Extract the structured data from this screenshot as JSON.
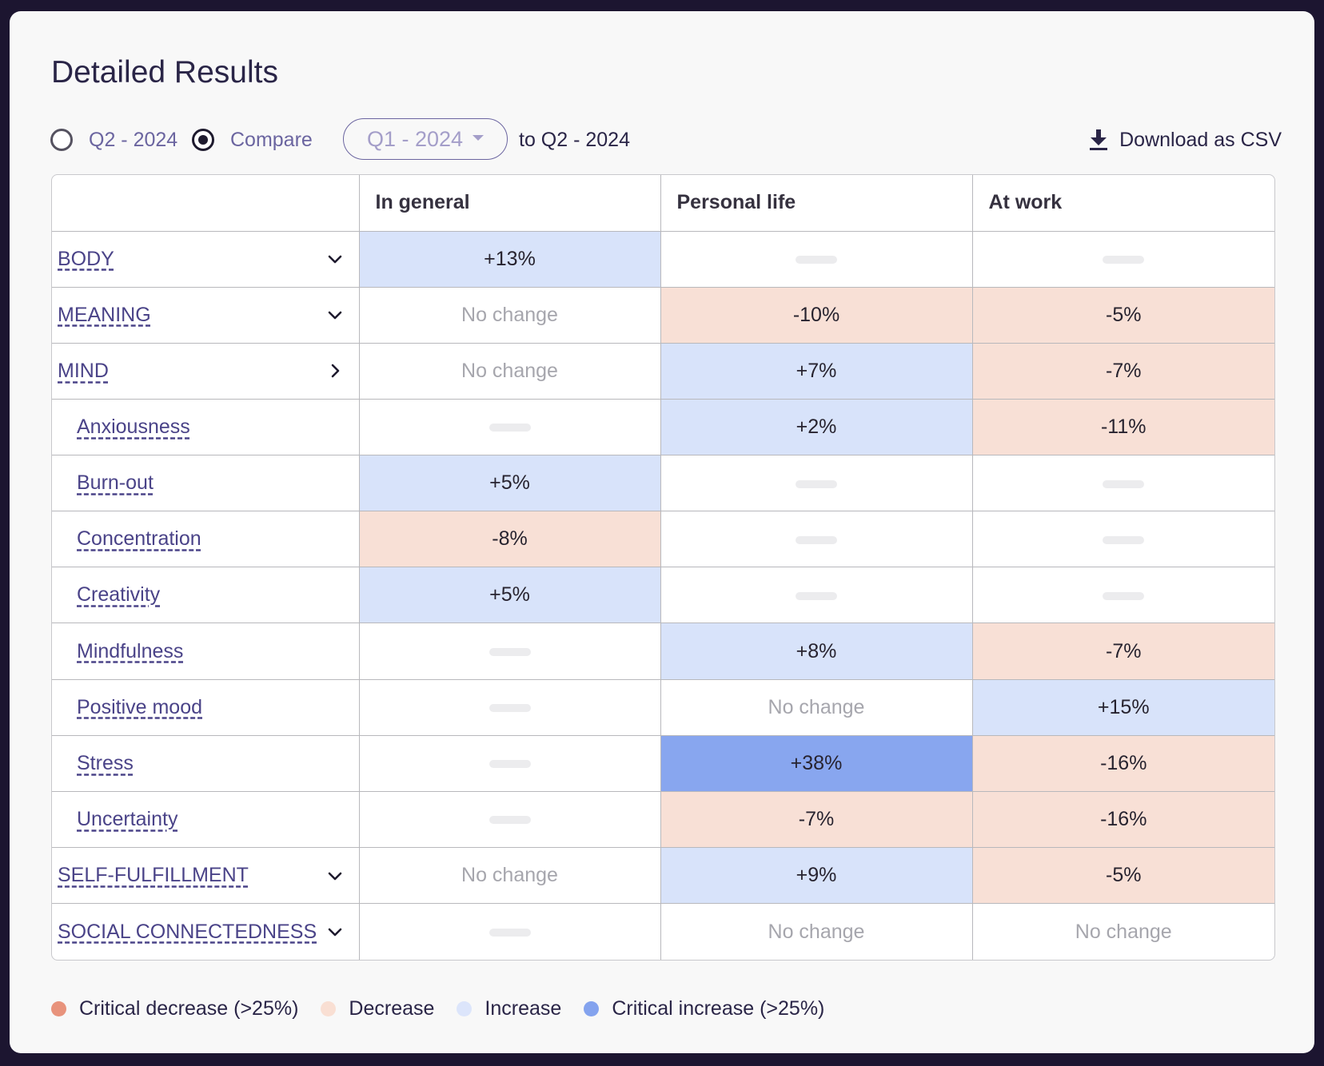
{
  "header": {
    "title": "Detailed Results"
  },
  "controls": {
    "radio_single_label": "Q2 - 2024",
    "radio_compare_label": "Compare",
    "selected_mode": "compare",
    "compare_select_value": "Q1 - 2024",
    "to_text": "to Q2 - 2024",
    "download_label": "Download as CSV"
  },
  "table": {
    "columns": [
      "",
      "In general",
      "Personal life",
      "At work"
    ],
    "rows": [
      {
        "label": "BODY",
        "level": "top",
        "expander": "expanded",
        "cells": [
          {
            "text": "+13%",
            "status": "increase"
          },
          {
            "text": "",
            "status": "empty"
          },
          {
            "text": "",
            "status": "empty"
          }
        ]
      },
      {
        "label": "MEANING",
        "level": "top",
        "expander": "expanded",
        "cells": [
          {
            "text": "No change",
            "status": "nochange"
          },
          {
            "text": "-10%",
            "status": "decrease"
          },
          {
            "text": "-5%",
            "status": "decrease"
          }
        ]
      },
      {
        "label": "MIND",
        "level": "top",
        "expander": "collapsed",
        "cells": [
          {
            "text": "No change",
            "status": "nochange"
          },
          {
            "text": "+7%",
            "status": "increase"
          },
          {
            "text": "-7%",
            "status": "decrease"
          }
        ]
      },
      {
        "label": "Anxiousness",
        "level": "sub",
        "expander": "",
        "cells": [
          {
            "text": "",
            "status": "empty"
          },
          {
            "text": "+2%",
            "status": "increase"
          },
          {
            "text": "-11%",
            "status": "decrease"
          }
        ]
      },
      {
        "label": "Burn-out",
        "level": "sub",
        "expander": "",
        "cells": [
          {
            "text": "+5%",
            "status": "increase"
          },
          {
            "text": "",
            "status": "empty"
          },
          {
            "text": "",
            "status": "empty"
          }
        ]
      },
      {
        "label": "Concentration",
        "level": "sub",
        "expander": "",
        "cells": [
          {
            "text": "-8%",
            "status": "decrease"
          },
          {
            "text": "",
            "status": "empty"
          },
          {
            "text": "",
            "status": "empty"
          }
        ]
      },
      {
        "label": "Creativity",
        "level": "sub",
        "expander": "",
        "cells": [
          {
            "text": "+5%",
            "status": "increase"
          },
          {
            "text": "",
            "status": "empty"
          },
          {
            "text": "",
            "status": "empty"
          }
        ]
      },
      {
        "label": "Mindfulness",
        "level": "sub",
        "expander": "",
        "cells": [
          {
            "text": "",
            "status": "empty"
          },
          {
            "text": "+8%",
            "status": "increase"
          },
          {
            "text": "-7%",
            "status": "decrease"
          }
        ]
      },
      {
        "label": "Positive mood",
        "level": "sub",
        "expander": "",
        "cells": [
          {
            "text": "",
            "status": "empty"
          },
          {
            "text": "No change",
            "status": "nochange"
          },
          {
            "text": "+15%",
            "status": "increase"
          }
        ]
      },
      {
        "label": "Stress",
        "level": "sub",
        "expander": "",
        "cells": [
          {
            "text": "",
            "status": "empty"
          },
          {
            "text": "+38%",
            "status": "critical-increase"
          },
          {
            "text": "-16%",
            "status": "decrease"
          }
        ]
      },
      {
        "label": "Uncertainty",
        "level": "sub",
        "expander": "",
        "cells": [
          {
            "text": "",
            "status": "empty"
          },
          {
            "text": "-7%",
            "status": "decrease"
          },
          {
            "text": "-16%",
            "status": "decrease"
          }
        ]
      },
      {
        "label": "SELF-FULFILLMENT",
        "level": "top",
        "expander": "expanded",
        "cells": [
          {
            "text": "No change",
            "status": "nochange"
          },
          {
            "text": "+9%",
            "status": "increase"
          },
          {
            "text": "-5%",
            "status": "decrease"
          }
        ]
      },
      {
        "label": "SOCIAL CONNECTEDNESS",
        "level": "top",
        "expander": "expanded",
        "cells": [
          {
            "text": "",
            "status": "empty"
          },
          {
            "text": "No change",
            "status": "nochange"
          },
          {
            "text": "No change",
            "status": "nochange"
          }
        ]
      }
    ]
  },
  "legend": [
    {
      "label": "Critical decrease (>25%)",
      "color": "#e8937c"
    },
    {
      "label": "Decrease",
      "color": "#f9dfd3"
    },
    {
      "label": "Increase",
      "color": "#dce5fb"
    },
    {
      "label": "Critical increase (>25%)",
      "color": "#84a3ee"
    }
  ]
}
